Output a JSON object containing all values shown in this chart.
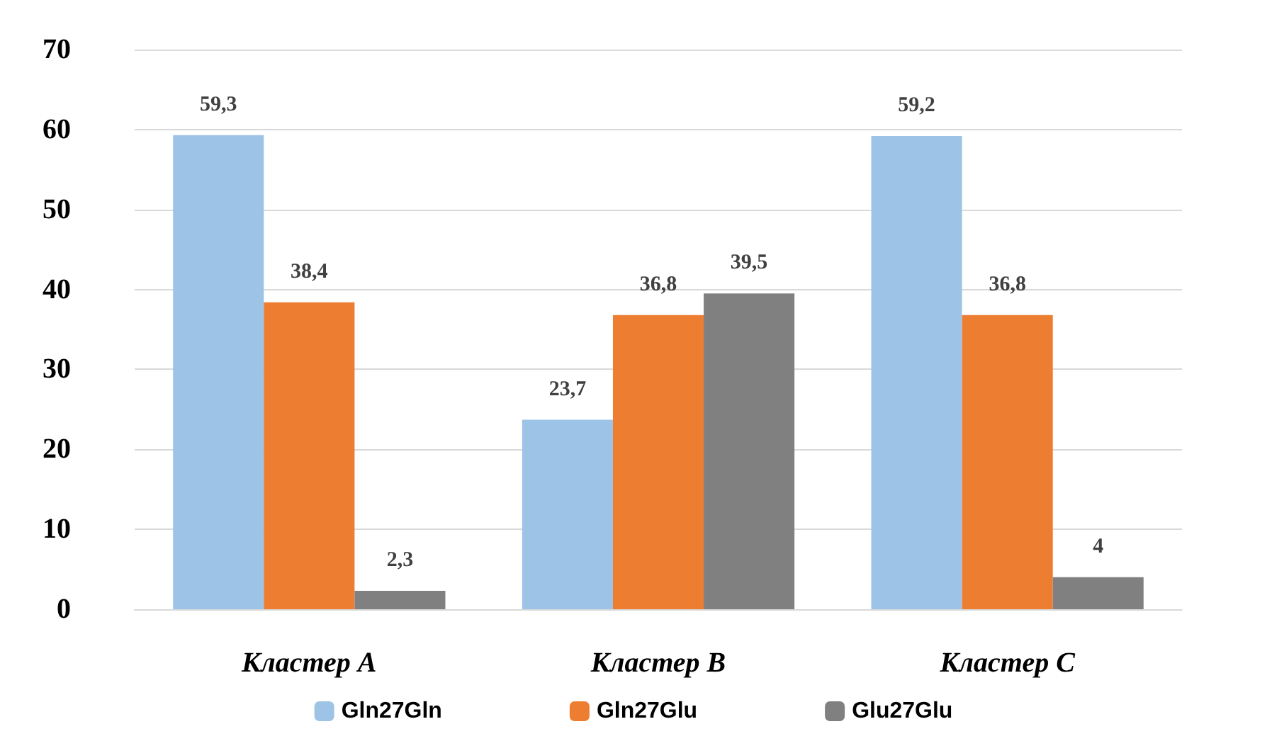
{
  "chart_data": {
    "type": "bar",
    "categories": [
      "Кластер А",
      "Кластер В",
      "Кластер С"
    ],
    "series": [
      {
        "name": "Gln27Gln",
        "color": "#9dc3e6",
        "values": [
          59.3,
          23.7,
          59.2
        ],
        "value_labels": [
          "59,3",
          "23,7",
          "59,2"
        ]
      },
      {
        "name": "Gln27Glu",
        "color": "#ed7d31",
        "values": [
          38.4,
          36.8,
          36.8
        ],
        "value_labels": [
          "38,4",
          "36,8",
          "36,8"
        ]
      },
      {
        "name": "Glu27Glu",
        "color": "#808080",
        "values": [
          2.3,
          39.5,
          4
        ],
        "value_labels": [
          "2,3",
          "39,5",
          "4"
        ]
      }
    ],
    "ylim": [
      0,
      70
    ],
    "yticks": [
      0,
      10,
      20,
      30,
      40,
      50,
      60,
      70
    ],
    "grid": "y",
    "legend": "bottom"
  }
}
